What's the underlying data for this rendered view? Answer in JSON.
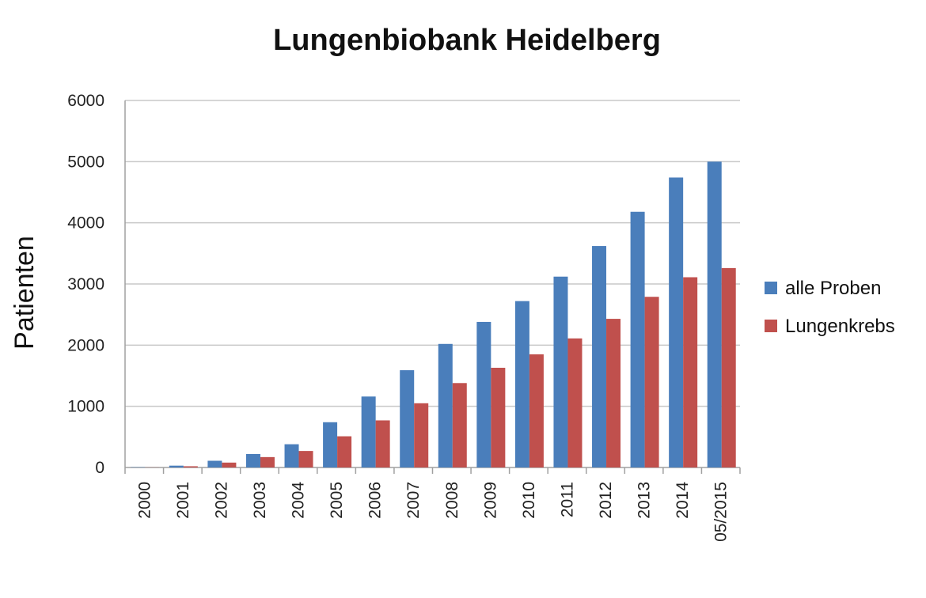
{
  "chart_data": {
    "type": "bar",
    "title": "Lungenbiobank Heidelberg",
    "ylabel": "Patienten",
    "xlabel": "",
    "ylim": [
      0,
      6000
    ],
    "yticks": [
      0,
      1000,
      2000,
      3000,
      4000,
      5000,
      6000
    ],
    "grid": true,
    "legend_position": "right",
    "categories": [
      "2000",
      "2001",
      "2002",
      "2003",
      "2004",
      "2005",
      "2006",
      "2007",
      "2008",
      "2009",
      "2010",
      "2011",
      "2012",
      "2013",
      "2014",
      "05/2015"
    ],
    "series": [
      {
        "name": "alle Proben",
        "color": "#4a7ebb",
        "values": [
          5,
          30,
          110,
          220,
          380,
          740,
          1160,
          1590,
          2020,
          2380,
          2720,
          3120,
          3620,
          4180,
          4740,
          5000
        ]
      },
      {
        "name": "Lungenkrebs",
        "color": "#c0504d",
        "values": [
          2,
          20,
          80,
          170,
          270,
          510,
          770,
          1050,
          1380,
          1630,
          1850,
          2110,
          2430,
          2790,
          3110,
          3260
        ]
      }
    ]
  }
}
